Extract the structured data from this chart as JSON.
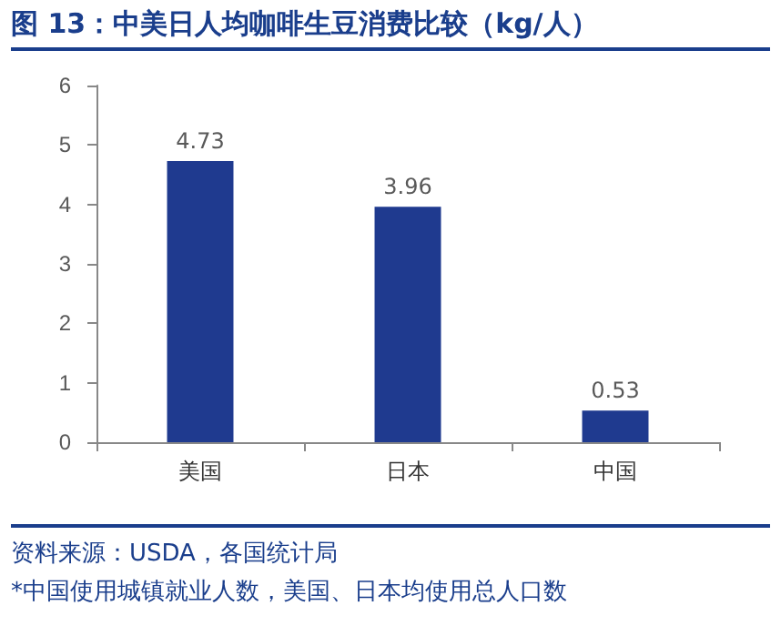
{
  "chart_data": {
    "type": "bar",
    "title": "图 13：中美日人均咖啡生豆消费比较（kg/人）",
    "categories": [
      "美国",
      "日本",
      "中国"
    ],
    "values": [
      4.73,
      3.96,
      0.53
    ],
    "color": "#1f3a8f",
    "ylim": [
      0,
      6
    ],
    "yticks": [
      0,
      1,
      2,
      3,
      4,
      5,
      6
    ],
    "grid": false,
    "data_labels": true,
    "annotations": [
      "资料来源：USDA，各国统计局",
      "*中国使用城镇就业人数，美国、日本均使用总人口数"
    ]
  }
}
